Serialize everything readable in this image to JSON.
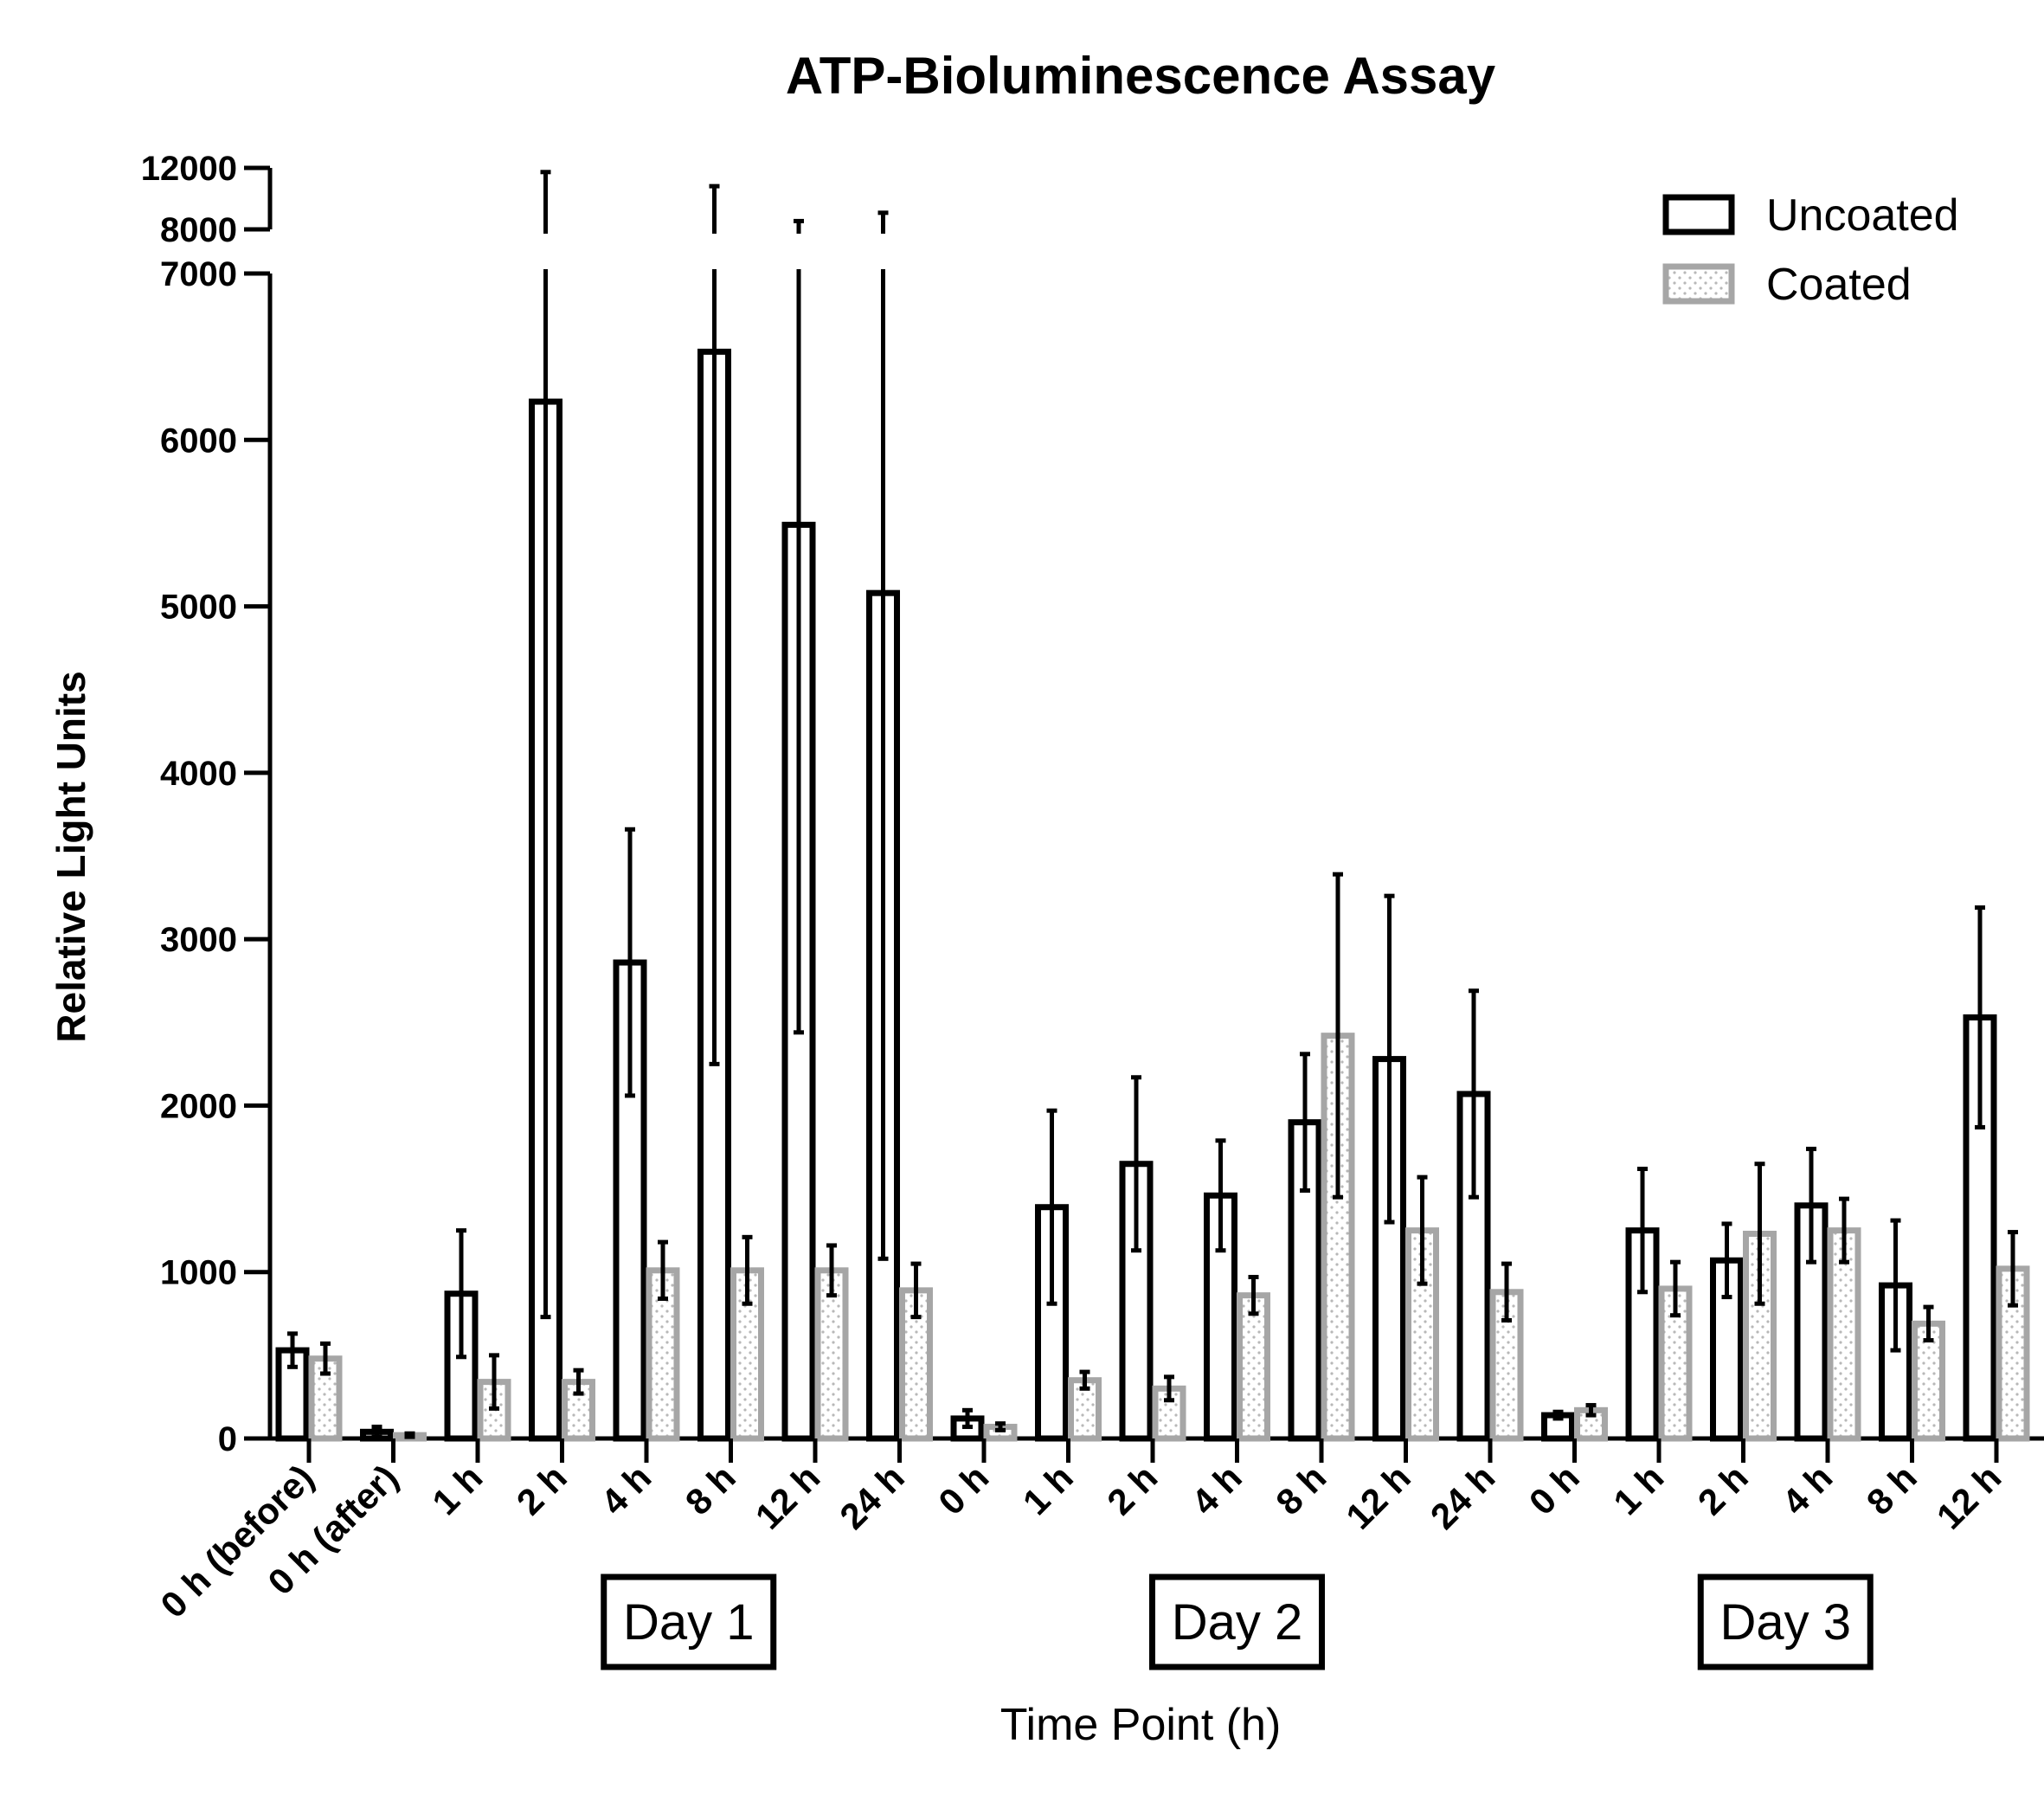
{
  "chart_data": {
    "type": "bar",
    "title": "ATP-Bioluminescence Assay",
    "xlabel": "Time Point (h)",
    "ylabel": "Relative Light Units",
    "y_axis": {
      "lower_segment": {
        "range": [
          0,
          7000
        ],
        "ticks": [
          "0",
          "1000",
          "2000",
          "3000",
          "4000",
          "5000",
          "6000",
          "7000"
        ]
      },
      "upper_segment": {
        "range": [
          8000,
          12000
        ],
        "ticks": [
          "8000",
          "12000"
        ]
      },
      "broken": true
    },
    "categories": [
      "0 h (before)",
      "0 h (after)",
      "1 h",
      "2 h",
      "4 h",
      "8 h",
      "12 h",
      "24 h",
      "0 h",
      "1 h",
      "2 h",
      "4 h",
      "8 h",
      "12 h",
      "24 h",
      "0 h",
      "1 h",
      "2 h",
      "4 h",
      "8 h",
      "12 h"
    ],
    "groups": [
      {
        "label": "Day 1",
        "category_range": [
          2,
          7
        ]
      },
      {
        "label": "Day 2",
        "category_range": [
          8,
          14
        ]
      },
      {
        "label": "Day 3",
        "category_range": [
          15,
          20
        ]
      }
    ],
    "series": [
      {
        "name": "Uncoated",
        "color": "#000000",
        "fill": "#ffffff",
        "values": [
          530,
          40,
          870,
          6230,
          2860,
          6530,
          5490,
          5080,
          120,
          1390,
          1650,
          1460,
          1900,
          2280,
          2070,
          140,
          1250,
          1070,
          1400,
          920,
          2530
        ],
        "error": [
          100,
          30,
          380,
          5500,
          800,
          4280,
          3050,
          4000,
          50,
          580,
          520,
          330,
          410,
          980,
          620,
          20,
          370,
          220,
          340,
          390,
          660
        ]
      },
      {
        "name": "Coated",
        "color": "#a6a6a6",
        "fill": "#ffffff",
        "pattern": "dotted",
        "values": [
          480,
          20,
          340,
          340,
          1010,
          1010,
          1010,
          890,
          70,
          350,
          300,
          860,
          2420,
          1250,
          880,
          170,
          900,
          1230,
          1250,
          690,
          1020
        ],
        "error": [
          90,
          10,
          160,
          70,
          170,
          200,
          150,
          160,
          20,
          50,
          70,
          110,
          970,
          320,
          170,
          30,
          160,
          420,
          190,
          100,
          220
        ]
      }
    ],
    "legend_position": "top-right",
    "grid": false
  }
}
